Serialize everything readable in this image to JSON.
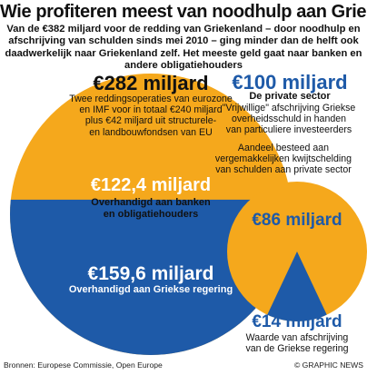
{
  "title": "Wie profiteren meest van noodhulp aan Grieken?",
  "subtitle": "Van de €382 miljard voor de redding van Griekenland – door noodhulp en afschrijving van schulden sinds mei 2010 – ging minder dan de helft ook daadwerkelijk naar Griekenland zelf. Het meeste geld gaat naar banken en andere obligatiehouders",
  "colors": {
    "orange": "#f5a81c",
    "blue": "#1e5aa8",
    "white": "#ffffff"
  },
  "left": {
    "total_label": "€282 miljard",
    "description": [
      "Twee reddingsoperaties van eurozone",
      "en IMF  voor in totaal €240 miljard",
      "plus €42 miljard uit structurele-",
      "en landbouwfondsen van EU"
    ],
    "top_value": "€122,4 miljard",
    "top_desc": [
      "Overhandigd aan banken",
      "en obligatiehouders"
    ],
    "bottom_value": "€159,6 miljard",
    "bottom_desc": "Overhandigd aan Griekse regering"
  },
  "right": {
    "total_label": "€100 miljard",
    "sector": "De private sector",
    "description": [
      "\"Vrijwillige\" afschrijving Griekse",
      "overheidsschuld in handen",
      "van particuliere investeerders"
    ],
    "share_desc": [
      "Aandeel besteed aan",
      "vergemakkelijken kwijtschelding",
      "van schulden aan private sector"
    ],
    "share_value": "€86 miljard",
    "writeoff_value": "€14 miljard",
    "writeoff_desc": [
      "Waarde van afschrijving",
      "van de Griekse regering"
    ]
  },
  "footer": {
    "sources": "Bronnen: Europese Commissie, Open Europe",
    "credit": "© GRAPHIC NEWS"
  },
  "chart_data": [
    {
      "type": "pie",
      "title": "€282 miljard",
      "unit": "€ miljard",
      "slices": [
        {
          "label": "Overhandigd aan banken en obligatiehouders",
          "value": 122.4,
          "color": "#f5a81c"
        },
        {
          "label": "Overhandigd aan Griekse regering",
          "value": 159.6,
          "color": "#1e5aa8"
        }
      ]
    },
    {
      "type": "pie",
      "title": "€100 miljard",
      "unit": "€ miljard",
      "slices": [
        {
          "label": "Aandeel besteed aan vergemakkelijken kwijtschelding van schulden aan private sector",
          "value": 86,
          "color": "#f5a81c"
        },
        {
          "label": "Waarde van afschrijving van de Griekse regering",
          "value": 14,
          "color": "#1e5aa8"
        }
      ]
    }
  ]
}
